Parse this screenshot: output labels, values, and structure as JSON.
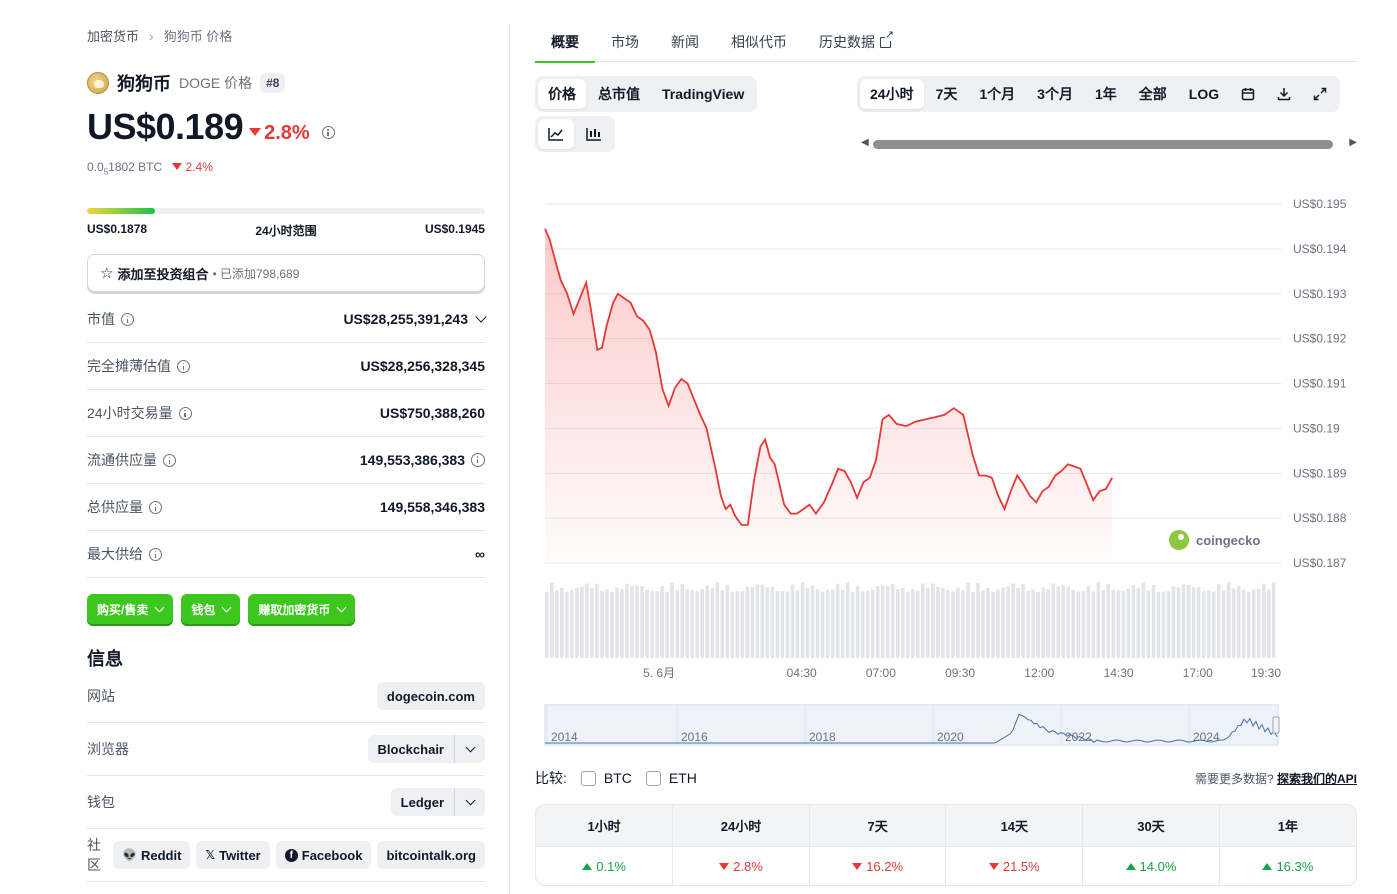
{
  "breadcrumb": {
    "root": "加密货币",
    "current": "狗狗币 价格"
  },
  "coin": {
    "name": "狗狗币",
    "symbol_label": "DOGE 价格",
    "rank": "#8"
  },
  "price": {
    "value": "US$0.189",
    "change": "2.8%",
    "btc_prefix": "0.0",
    "btc_sub": "5",
    "btc_rest": "1802 BTC",
    "btc_change": "2.4%"
  },
  "range": {
    "low": "US$0.1878",
    "label": "24小时范围",
    "high": "US$0.1945",
    "fill_fraction": 0.17
  },
  "portfolio": {
    "label": "添加至投资组合",
    "added": "• 已添加798,689"
  },
  "stats": [
    {
      "label": "市值",
      "value": "US$28,255,391,243"
    },
    {
      "label": "完全摊薄估值",
      "value": "US$28,256,328,345"
    },
    {
      "label": "24小时交易量",
      "value": "US$750,388,260"
    },
    {
      "label": "流通供应量",
      "value": "149,553,386,383"
    },
    {
      "label": "总供应量",
      "value": "149,558,346,383"
    },
    {
      "label": "最大供给",
      "value": "∞"
    }
  ],
  "actions": {
    "buy_sell": "购买/售卖",
    "wallet": "钱包",
    "earn": "赚取加密货币"
  },
  "info": {
    "title": "信息",
    "website_label": "网站",
    "website": "dogecoin.com",
    "explorer_label": "浏览器",
    "explorer": "Blockchair",
    "wallet_label": "钱包",
    "wallet": "Ledger",
    "community_label": "社区",
    "community": {
      "reddit": "Reddit",
      "twitter": "Twitter",
      "facebook": "Facebook",
      "forum": "bitcointalk.org"
    }
  },
  "tabs": [
    "概要",
    "市场",
    "新闻",
    "相似代币",
    "历史数据"
  ],
  "chart_controls": {
    "modes": [
      "价格",
      "总市值",
      "TradingView"
    ],
    "ranges": [
      "24小时",
      "7天",
      "1个月",
      "3个月",
      "1年",
      "全部",
      "LOG"
    ]
  },
  "colors": {
    "accent_green": "#3cc71e",
    "line_red": "#e53935",
    "up_green": "#16a34a"
  },
  "chart_data": {
    "type": "area",
    "y_tick_labels": [
      "US$0.195",
      "US$0.194",
      "US$0.193",
      "US$0.192",
      "US$0.191",
      "US$0.19",
      "US$0.189",
      "US$0.188",
      "US$0.187"
    ],
    "y_ticks": [
      0.195,
      0.194,
      0.193,
      0.192,
      0.191,
      0.19,
      0.189,
      0.188,
      0.187
    ],
    "ylim": [
      0.187,
      0.195
    ],
    "x_tick_labels": [
      "5. 6月",
      "04:30",
      "07:00",
      "09:30",
      "12:00",
      "14:30",
      "17:00",
      "19:30"
    ],
    "x_tick_hours": [
      0,
      4.5,
      7,
      9.5,
      12,
      14.5,
      17,
      19.5
    ],
    "xlim_hours": [
      -3.6,
      19.5
    ],
    "grid": true,
    "watermark": "coingecko",
    "price_series": [
      [
        -3.6,
        0.19445
      ],
      [
        -3.45,
        0.1942
      ],
      [
        -3.3,
        0.1938
      ],
      [
        -3.1,
        0.1933
      ],
      [
        -2.9,
        0.193
      ],
      [
        -2.7,
        0.19255
      ],
      [
        -2.5,
        0.1929
      ],
      [
        -2.3,
        0.19325
      ],
      [
        -2.15,
        0.19265
      ],
      [
        -1.95,
        0.19175
      ],
      [
        -1.8,
        0.1918
      ],
      [
        -1.65,
        0.1923
      ],
      [
        -1.45,
        0.1928
      ],
      [
        -1.3,
        0.193
      ],
      [
        -1.1,
        0.1929
      ],
      [
        -0.9,
        0.1928
      ],
      [
        -0.7,
        0.1925
      ],
      [
        -0.5,
        0.1924
      ],
      [
        -0.3,
        0.1922
      ],
      [
        -0.1,
        0.1917
      ],
      [
        0.1,
        0.1909
      ],
      [
        0.3,
        0.1905
      ],
      [
        0.5,
        0.1909
      ],
      [
        0.7,
        0.1911
      ],
      [
        0.9,
        0.191
      ],
      [
        1.1,
        0.19065
      ],
      [
        1.3,
        0.1903
      ],
      [
        1.5,
        0.19
      ],
      [
        1.75,
        0.1892
      ],
      [
        1.95,
        0.1885
      ],
      [
        2.1,
        0.1882
      ],
      [
        2.25,
        0.1883
      ],
      [
        2.4,
        0.18805
      ],
      [
        2.6,
        0.18785
      ],
      [
        2.8,
        0.18785
      ],
      [
        3.0,
        0.18885
      ],
      [
        3.2,
        0.1896
      ],
      [
        3.35,
        0.18975
      ],
      [
        3.5,
        0.18935
      ],
      [
        3.65,
        0.1892
      ],
      [
        3.8,
        0.18875
      ],
      [
        3.95,
        0.1883
      ],
      [
        4.15,
        0.1881
      ],
      [
        4.35,
        0.1881
      ],
      [
        4.55,
        0.1882
      ],
      [
        4.75,
        0.1883
      ],
      [
        4.95,
        0.1881
      ],
      [
        5.2,
        0.18835
      ],
      [
        5.45,
        0.18875
      ],
      [
        5.65,
        0.1891
      ],
      [
        5.85,
        0.18905
      ],
      [
        6.05,
        0.1888
      ],
      [
        6.25,
        0.18845
      ],
      [
        6.45,
        0.1888
      ],
      [
        6.65,
        0.1889
      ],
      [
        6.85,
        0.1893
      ],
      [
        7.05,
        0.1902
      ],
      [
        7.25,
        0.1903
      ],
      [
        7.5,
        0.1901
      ],
      [
        7.8,
        0.19005
      ],
      [
        8.1,
        0.19015
      ],
      [
        8.4,
        0.1902
      ],
      [
        8.7,
        0.19025
      ],
      [
        9.0,
        0.1903
      ],
      [
        9.3,
        0.19045
      ],
      [
        9.6,
        0.1903
      ],
      [
        9.9,
        0.1894
      ],
      [
        10.1,
        0.18895
      ],
      [
        10.3,
        0.18895
      ],
      [
        10.5,
        0.1889
      ],
      [
        10.7,
        0.1885
      ],
      [
        10.9,
        0.1882
      ],
      [
        11.1,
        0.1886
      ],
      [
        11.3,
        0.18895
      ],
      [
        11.5,
        0.18875
      ],
      [
        11.7,
        0.1885
      ],
      [
        11.9,
        0.18835
      ],
      [
        12.1,
        0.1886
      ],
      [
        12.3,
        0.1887
      ],
      [
        12.5,
        0.18895
      ],
      [
        12.7,
        0.18905
      ],
      [
        12.9,
        0.1892
      ],
      [
        13.1,
        0.18915
      ],
      [
        13.3,
        0.1891
      ],
      [
        13.5,
        0.18875
      ],
      [
        13.7,
        0.1884
      ],
      [
        13.9,
        0.1886
      ],
      [
        14.1,
        0.18865
      ],
      [
        14.3,
        0.1889
      ]
    ],
    "volume_note": "relative volume bars, no printed scale"
  },
  "overview": {
    "years": [
      "2014",
      "2016",
      "2018",
      "2020",
      "2022",
      "2024"
    ]
  },
  "compare": {
    "label": "比较:",
    "btc": "BTC",
    "eth": "ETH",
    "api_note": "需要更多数据?",
    "api_link": "探索我们的API"
  },
  "performance": {
    "headers": [
      "1小时",
      "24小时",
      "7天",
      "14天",
      "30天",
      "1年"
    ],
    "values": [
      {
        "value": "0.1%",
        "direction": "up"
      },
      {
        "value": "2.8%",
        "direction": "down"
      },
      {
        "value": "16.2%",
        "direction": "down"
      },
      {
        "value": "21.5%",
        "direction": "down"
      },
      {
        "value": "14.0%",
        "direction": "up"
      },
      {
        "value": "16.3%",
        "direction": "up"
      }
    ]
  }
}
